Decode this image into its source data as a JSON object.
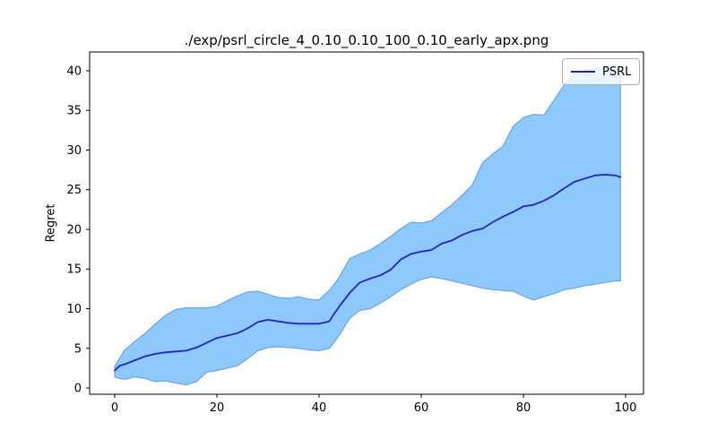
{
  "colors": {
    "background": "#ffffff",
    "axes": "#000000",
    "line": "#2222cc",
    "band_fill": "#8dc9fa",
    "band_edge": "#6ba3ec",
    "legend_border": "#b0b0b0"
  },
  "chart_data": {
    "type": "line",
    "title": "./exp/psrl_circle_4_0.10_0.10_100_0.10_early_apx.png",
    "xlabel": "",
    "ylabel": "Regret",
    "grid": false,
    "xlim": [
      -4.91,
      103.5
    ],
    "ylim": [
      -0.79,
      42.37
    ],
    "xticks": [
      0,
      20,
      40,
      60,
      80,
      100
    ],
    "yticks": [
      0,
      5,
      10,
      15,
      20,
      25,
      30,
      35,
      40
    ],
    "legend": {
      "position": "upper right",
      "entries": [
        {
          "label": "PSRL",
          "color": "#2222cc"
        }
      ]
    },
    "series": [
      {
        "name": "PSRL",
        "color": "#2222cc",
        "band_fill": "#8dc9fa",
        "band_edge": "#6ba3ec",
        "x": [
          0,
          1,
          2,
          4,
          6,
          8,
          10,
          12,
          14,
          16,
          18,
          20,
          22,
          24,
          26,
          28,
          30,
          32,
          34,
          36,
          38,
          40,
          42,
          43,
          44,
          46,
          48,
          50,
          52,
          54,
          56,
          58,
          60,
          62,
          64,
          66,
          68,
          70,
          72,
          74,
          76,
          78,
          80,
          82,
          84,
          86,
          88,
          90,
          92,
          94,
          96,
          98,
          99
        ],
        "mean": [
          2.2,
          2.8,
          3.0,
          3.5,
          4.0,
          4.3,
          4.5,
          4.6,
          4.7,
          5.1,
          5.7,
          6.3,
          6.6,
          6.9,
          7.5,
          8.3,
          8.6,
          8.4,
          8.2,
          8.1,
          8.1,
          8.1,
          8.4,
          9.4,
          10.3,
          12.0,
          13.3,
          13.8,
          14.2,
          14.9,
          16.2,
          16.9,
          17.2,
          17.4,
          18.2,
          18.6,
          19.3,
          19.8,
          20.1,
          20.9,
          21.6,
          22.2,
          22.9,
          23.1,
          23.6,
          24.3,
          25.2,
          26.0,
          26.4,
          26.8,
          26.9,
          26.8,
          26.6
        ],
        "band_low": [
          1.4,
          1.2,
          1.1,
          1.4,
          1.2,
          0.8,
          0.9,
          0.6,
          0.4,
          0.8,
          2.0,
          2.2,
          2.5,
          2.8,
          3.7,
          4.7,
          5.1,
          5.2,
          5.1,
          5.0,
          4.8,
          4.7,
          5.0,
          5.8,
          6.7,
          8.8,
          9.8,
          10.0,
          10.7,
          11.5,
          12.4,
          13.1,
          13.7,
          14.0,
          13.8,
          13.5,
          13.2,
          12.9,
          12.6,
          12.4,
          12.3,
          12.2,
          11.6,
          11.1,
          11.5,
          11.9,
          12.4,
          12.6,
          12.9,
          13.1,
          13.3,
          13.5,
          13.5
        ],
        "band_high": [
          2.7,
          3.8,
          4.8,
          5.9,
          6.9,
          8.1,
          9.2,
          9.9,
          10.1,
          10.1,
          10.1,
          10.3,
          11.0,
          11.6,
          12.1,
          12.2,
          11.8,
          11.4,
          11.3,
          11.5,
          11.2,
          11.1,
          12.3,
          13.1,
          14.0,
          16.3,
          16.9,
          17.4,
          18.2,
          19.1,
          20.1,
          20.9,
          20.8,
          21.1,
          22.1,
          23.1,
          24.3,
          25.6,
          28.4,
          29.5,
          30.5,
          33.0,
          34.1,
          34.5,
          34.4,
          36.3,
          38.2,
          39.6,
          40.0,
          40.3,
          40.4,
          40.2,
          40.1
        ]
      }
    ]
  }
}
